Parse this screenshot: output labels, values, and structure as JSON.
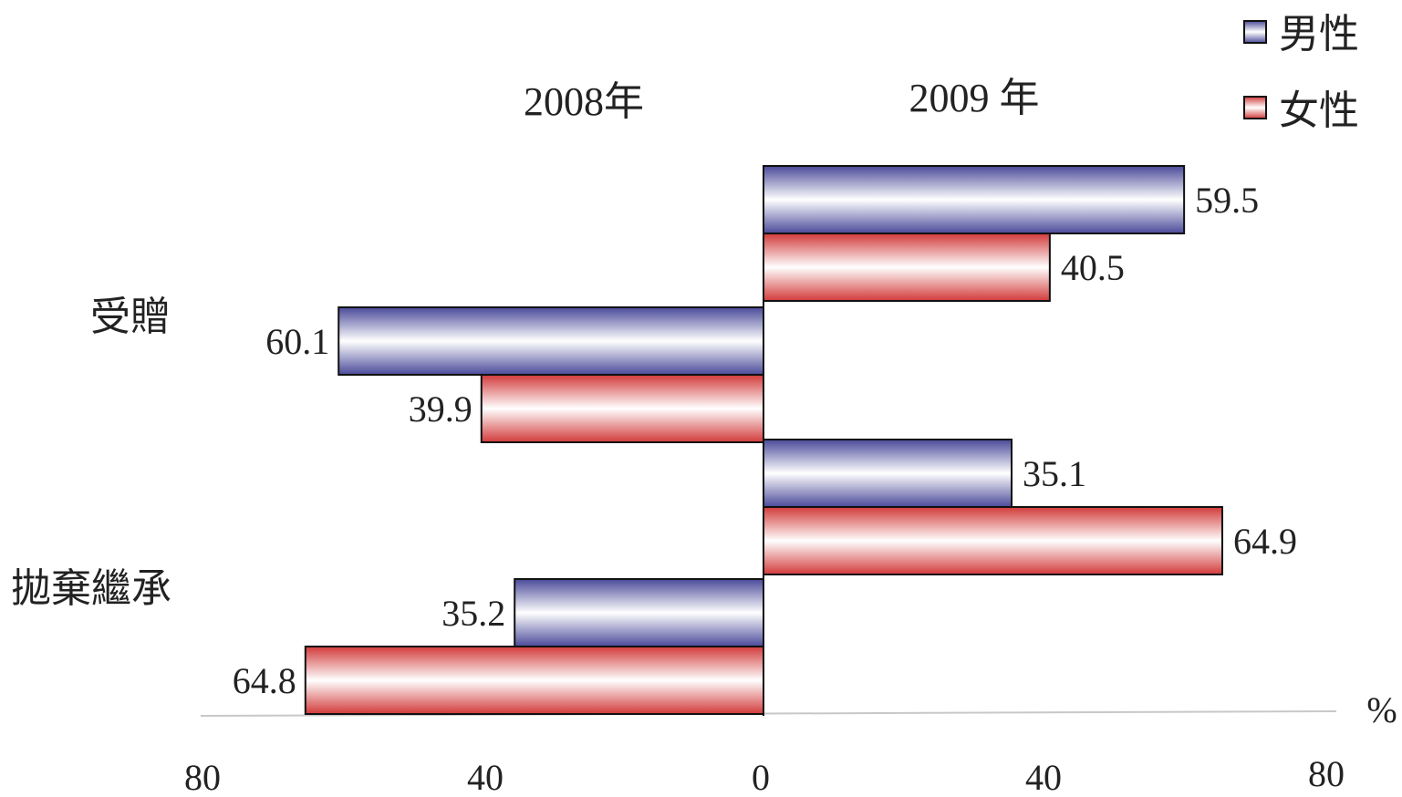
{
  "chart_data": {
    "type": "bar",
    "orientation": "horizontal",
    "panels": [
      "2008年",
      "2009 年"
    ],
    "categories": [
      "受贈",
      "拋棄繼承"
    ],
    "series": [
      {
        "name": "男性",
        "color": "#4a4a9a"
      },
      {
        "name": "女性",
        "color": "#d23a3a"
      }
    ],
    "values": {
      "2008": {
        "受贈": {
          "男性": 60.1,
          "女性": 39.9
        },
        "拋棄繼承": {
          "男性": 35.2,
          "女性": 64.8
        }
      },
      "2009": {
        "受贈": {
          "男性": 59.5,
          "女性": 40.5
        },
        "拋棄繼承": {
          "男性": 35.1,
          "女性": 64.9
        }
      }
    },
    "xlim": [
      -80,
      80
    ],
    "x_ticks": [
      "80",
      "40",
      "0",
      "40",
      "80"
    ],
    "unit": "%",
    "legend_position": "top-right",
    "grid": false
  },
  "value_labels": {
    "y2009_gift_male": "59.5",
    "y2009_gift_female": "40.5",
    "y2008_gift_male": "60.1",
    "y2008_gift_female": "39.9",
    "y2009_renounce_male": "35.1",
    "y2009_renounce_female": "64.9",
    "y2008_renounce_male": "35.2",
    "y2008_renounce_female": "64.8"
  }
}
